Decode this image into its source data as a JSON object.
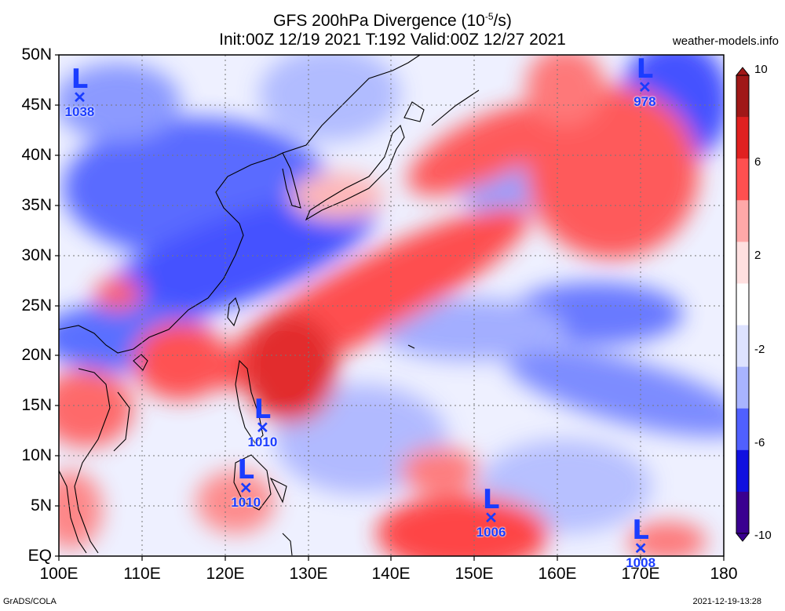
{
  "title_line1": "GFS 200hPa Divergence (10",
  "title_line1_sup": "-5",
  "title_line1_tail": "/s)",
  "title_line2": "Init:00Z 12/19 2021 T:192 Valid:00Z 12/27 2021",
  "source": "weather-models.info",
  "footer_left": "GrADS/COLA",
  "footer_right": "2021-12-19-13:28",
  "lat_labels": [
    "50N",
    "45N",
    "40N",
    "35N",
    "30N",
    "25N",
    "20N",
    "15N",
    "10N",
    "5N",
    "EQ"
  ],
  "lon_labels": [
    "100E",
    "110E",
    "120E",
    "130E",
    "140E",
    "150E",
    "160E",
    "170E",
    "180"
  ],
  "colorbar": {
    "labels": [
      "10",
      "6",
      "2",
      "-2",
      "-6",
      "-10"
    ],
    "colors_high_to_low": [
      "#a01818",
      "#e02020",
      "#ff5050",
      "#ffa8a8",
      "#ffe0e0",
      "#ffffff",
      "#dde2ff",
      "#a8b4ff",
      "#5060ff",
      "#1010e0",
      "#3a0090"
    ]
  },
  "lows": [
    {
      "pressure": "1038",
      "lon": 102.5,
      "lat": 45.8
    },
    {
      "pressure": "978",
      "lon": 170.5,
      "lat": 46.8
    },
    {
      "pressure": "1010",
      "lon": 124.5,
      "lat": 12.8
    },
    {
      "pressure": "1010",
      "lon": 122.5,
      "lat": 6.8
    },
    {
      "pressure": "1006",
      "lon": 152.0,
      "lat": 3.8
    },
    {
      "pressure": "1008",
      "lon": 170.0,
      "lat": 0.8
    }
  ]
}
